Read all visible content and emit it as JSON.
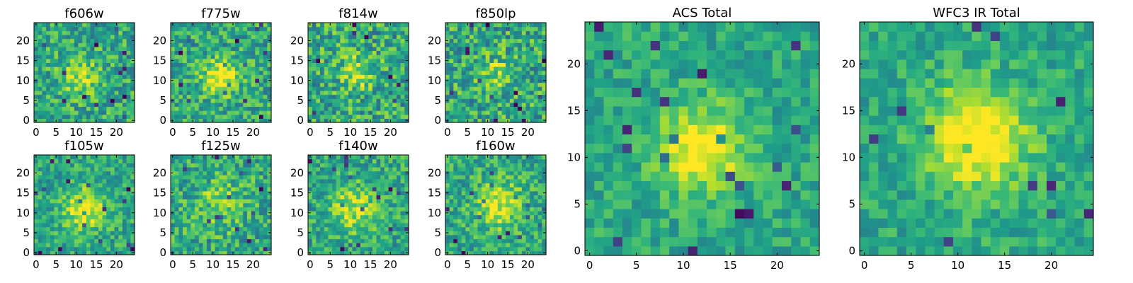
{
  "figure": {
    "description_colormap": "viridis"
  },
  "chart_data": [
    {
      "type": "heatmap",
      "title": "f606w",
      "grid": [
        25,
        25
      ],
      "xticks": [
        0,
        5,
        10,
        15,
        20
      ],
      "yticks": [
        0,
        5,
        10,
        15,
        20
      ],
      "xlim": [
        -0.5,
        24.5
      ],
      "ylim": [
        -0.5,
        24.5
      ],
      "peak": [
        11,
        11
      ],
      "noise": 0.22,
      "contrast": 0.25,
      "blob_radius": 3.5
    },
    {
      "type": "heatmap",
      "title": "f775w",
      "grid": [
        25,
        25
      ],
      "xticks": [
        0,
        5,
        10,
        15,
        20
      ],
      "yticks": [
        0,
        5,
        10,
        15,
        20
      ],
      "xlim": [
        -0.5,
        24.5
      ],
      "ylim": [
        -0.5,
        24.5
      ],
      "peak": [
        12,
        11
      ],
      "noise": 0.22,
      "contrast": 0.45,
      "blob_radius": 3.0
    },
    {
      "type": "heatmap",
      "title": "f814w",
      "grid": [
        25,
        25
      ],
      "xticks": [
        0,
        5,
        10,
        15,
        20
      ],
      "yticks": [
        0,
        5,
        10,
        15,
        20
      ],
      "xlim": [
        -0.5,
        24.5
      ],
      "ylim": [
        -0.5,
        24.5
      ],
      "peak": [
        12,
        12
      ],
      "noise": 0.26,
      "contrast": 0.3,
      "blob_radius": 3.0
    },
    {
      "type": "heatmap",
      "title": "f850lp",
      "grid": [
        25,
        25
      ],
      "xticks": [
        0,
        5,
        10,
        15,
        20
      ],
      "yticks": [
        0,
        5,
        10,
        15,
        20
      ],
      "xlim": [
        -0.5,
        24.5
      ],
      "ylim": [
        -0.5,
        24.5
      ],
      "peak": [
        12,
        12
      ],
      "noise": 0.26,
      "contrast": 0.2,
      "blob_radius": 3.0
    },
    {
      "type": "heatmap",
      "title": "f105w",
      "grid": [
        25,
        25
      ],
      "xticks": [
        0,
        5,
        10,
        15,
        20
      ],
      "yticks": [
        0,
        5,
        10,
        15,
        20
      ],
      "xlim": [
        -0.5,
        24.5
      ],
      "ylim": [
        -0.5,
        24.5
      ],
      "peak": [
        12,
        11
      ],
      "noise": 0.18,
      "contrast": 0.4,
      "blob_radius": 3.5
    },
    {
      "type": "heatmap",
      "title": "f125w",
      "grid": [
        25,
        25
      ],
      "xticks": [
        0,
        5,
        10,
        15,
        20
      ],
      "yticks": [
        0,
        5,
        10,
        15,
        20
      ],
      "xlim": [
        -0.5,
        24.5
      ],
      "ylim": [
        -0.5,
        24.5
      ],
      "peak": [
        12,
        12
      ],
      "noise": 0.22,
      "contrast": 0.25,
      "blob_radius": 4.0
    },
    {
      "type": "heatmap",
      "title": "f140w",
      "grid": [
        25,
        25
      ],
      "xticks": [
        0,
        5,
        10,
        15,
        20
      ],
      "yticks": [
        0,
        5,
        10,
        15,
        20
      ],
      "xlim": [
        -0.5,
        24.5
      ],
      "ylim": [
        -0.5,
        24.5
      ],
      "peak": [
        11,
        11
      ],
      "noise": 0.2,
      "contrast": 0.3,
      "blob_radius": 4.0
    },
    {
      "type": "heatmap",
      "title": "f160w",
      "grid": [
        25,
        25
      ],
      "xticks": [
        0,
        5,
        10,
        15,
        20
      ],
      "yticks": [
        0,
        5,
        10,
        15,
        20
      ],
      "xlim": [
        -0.5,
        24.5
      ],
      "ylim": [
        -0.5,
        24.5
      ],
      "peak": [
        13,
        12
      ],
      "noise": 0.2,
      "contrast": 0.35,
      "blob_radius": 4.0
    },
    {
      "type": "heatmap",
      "title": "ACS Total",
      "grid": [
        25,
        25
      ],
      "xticks": [
        0,
        5,
        10,
        15,
        20
      ],
      "yticks": [
        0,
        5,
        10,
        15,
        20
      ],
      "xlim": [
        -0.5,
        24.5
      ],
      "ylim": [
        -0.5,
        24.5
      ],
      "peak": [
        12,
        11
      ],
      "noise": 0.14,
      "contrast": 0.45,
      "blob_radius": 3.2
    },
    {
      "type": "heatmap",
      "title": "WFC3 IR Total",
      "grid": [
        25,
        25
      ],
      "xticks": [
        0,
        5,
        10,
        15,
        20
      ],
      "yticks": [
        0,
        5,
        10,
        15,
        20
      ],
      "xlim": [
        -0.5,
        24.5
      ],
      "ylim": [
        -0.5,
        24.5
      ],
      "peak": [
        12,
        12
      ],
      "noise": 0.14,
      "contrast": 0.5,
      "blob_radius": 3.8
    }
  ]
}
